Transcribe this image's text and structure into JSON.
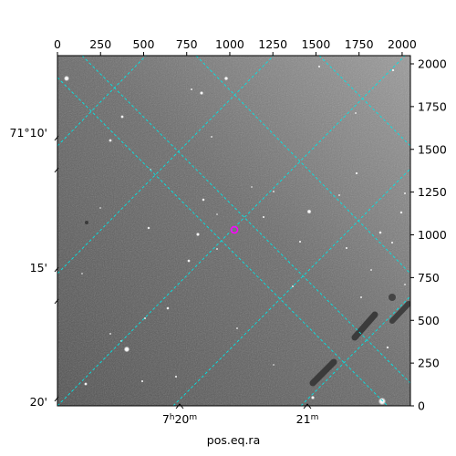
{
  "figure": {
    "xlabel": "pos.eq.ra",
    "colors": {
      "grid": "#00e5e5",
      "marker": "#ff00ff",
      "background": "#ffffff",
      "axes_frame": "#000000"
    }
  },
  "top_axis": {
    "range": [
      0,
      2048
    ],
    "ticks": [
      {
        "value": 0,
        "label": "0"
      },
      {
        "value": 250,
        "label": "250"
      },
      {
        "value": 500,
        "label": "500"
      },
      {
        "value": 750,
        "label": "750"
      },
      {
        "value": 1000,
        "label": "1000"
      },
      {
        "value": 1250,
        "label": "1250"
      },
      {
        "value": 1500,
        "label": "1500"
      },
      {
        "value": 1750,
        "label": "1750"
      },
      {
        "value": 2000,
        "label": "2000"
      }
    ]
  },
  "right_axis": {
    "range": [
      0,
      2048
    ],
    "ticks": [
      {
        "value": 0,
        "label": "0"
      },
      {
        "value": 250,
        "label": "250"
      },
      {
        "value": 500,
        "label": "500"
      },
      {
        "value": 750,
        "label": "750"
      },
      {
        "value": 1000,
        "label": "1000"
      },
      {
        "value": 1250,
        "label": "1250"
      },
      {
        "value": 1500,
        "label": "1500"
      },
      {
        "value": 1750,
        "label": "1750"
      },
      {
        "value": 2000,
        "label": "2000"
      }
    ]
  },
  "ra_labels": [
    {
      "label": "7h20m",
      "main": "7",
      "sup1": "h",
      "mid": "20",
      "sup2": "m"
    },
    {
      "label": "21m",
      "main": "",
      "sup1": "",
      "mid": "21",
      "sup2": "m"
    }
  ],
  "dec_labels": [
    "71°10'",
    "15'",
    "20'"
  ]
}
